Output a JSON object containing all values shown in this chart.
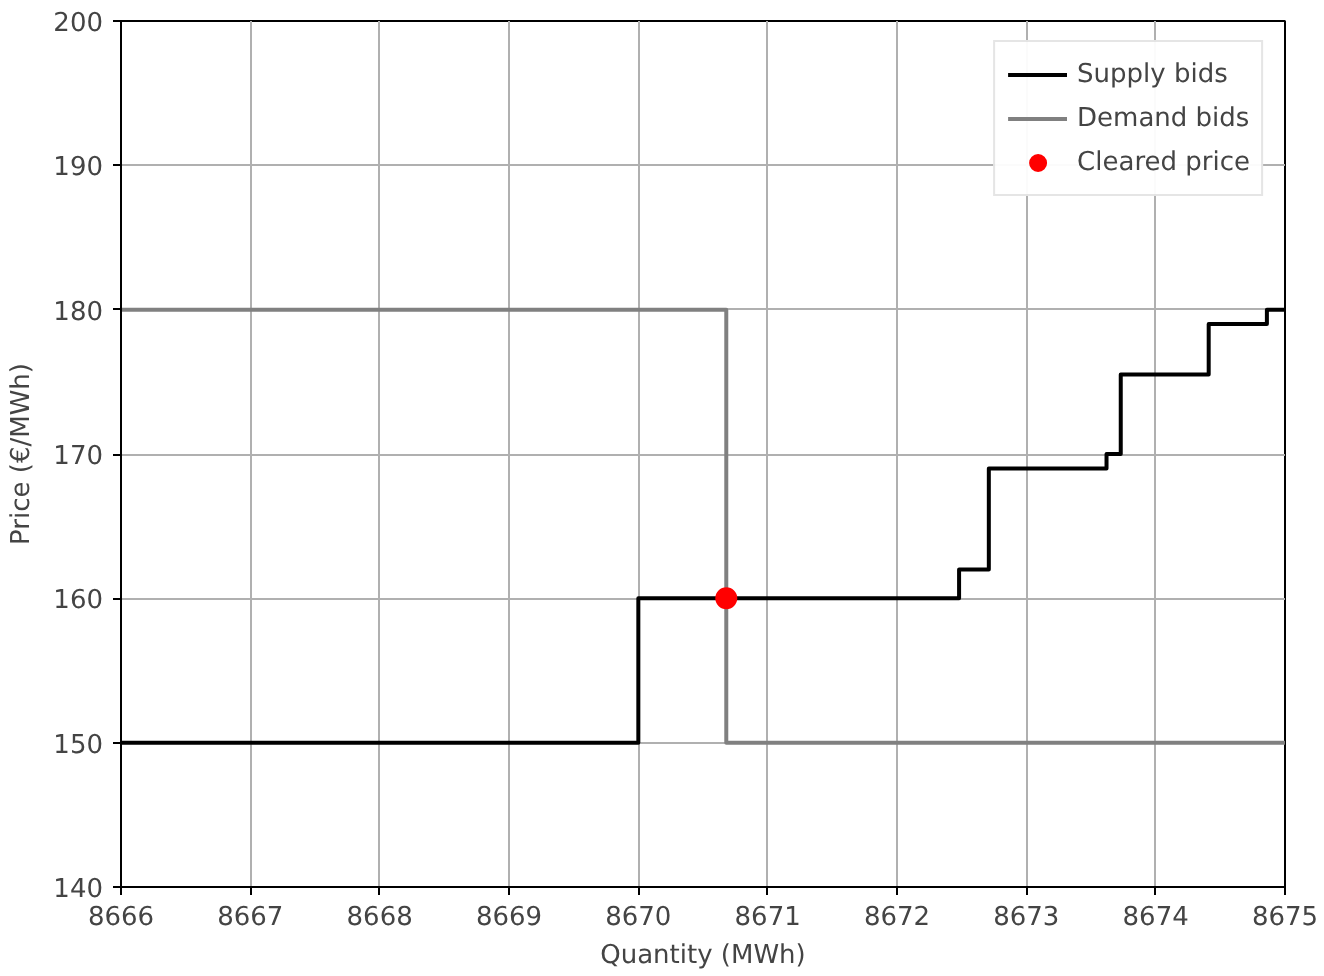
{
  "chart_data": {
    "type": "step",
    "xlabel": "Quantity (MWh)",
    "ylabel": "Price (€/MWh)",
    "xlim": [
      8666,
      8675
    ],
    "ylim": [
      140,
      200
    ],
    "xticks": [
      8666,
      8667,
      8668,
      8669,
      8670,
      8671,
      8672,
      8673,
      8674,
      8675
    ],
    "yticks": [
      140,
      150,
      160,
      170,
      180,
      190,
      200
    ],
    "grid": true,
    "legend": "top right",
    "series": [
      {
        "name": "Supply bids",
        "color": "#000000",
        "x": [
          8666,
          8670,
          8672.48,
          8672.71,
          8673.62,
          8673.73,
          8674.41,
          8674.86,
          8675
        ],
        "values": [
          150,
          160,
          162,
          169,
          170,
          175.5,
          179,
          180,
          180
        ]
      },
      {
        "name": "Demand bids",
        "color": "#808080",
        "x": [
          8666,
          8670.68,
          8675
        ],
        "values": [
          180,
          150,
          150
        ]
      },
      {
        "name": "Cleared price",
        "color": "#ff0000",
        "type": "scatter",
        "marker": "circle",
        "x": [
          8670.68
        ],
        "values": [
          160
        ]
      }
    ]
  }
}
